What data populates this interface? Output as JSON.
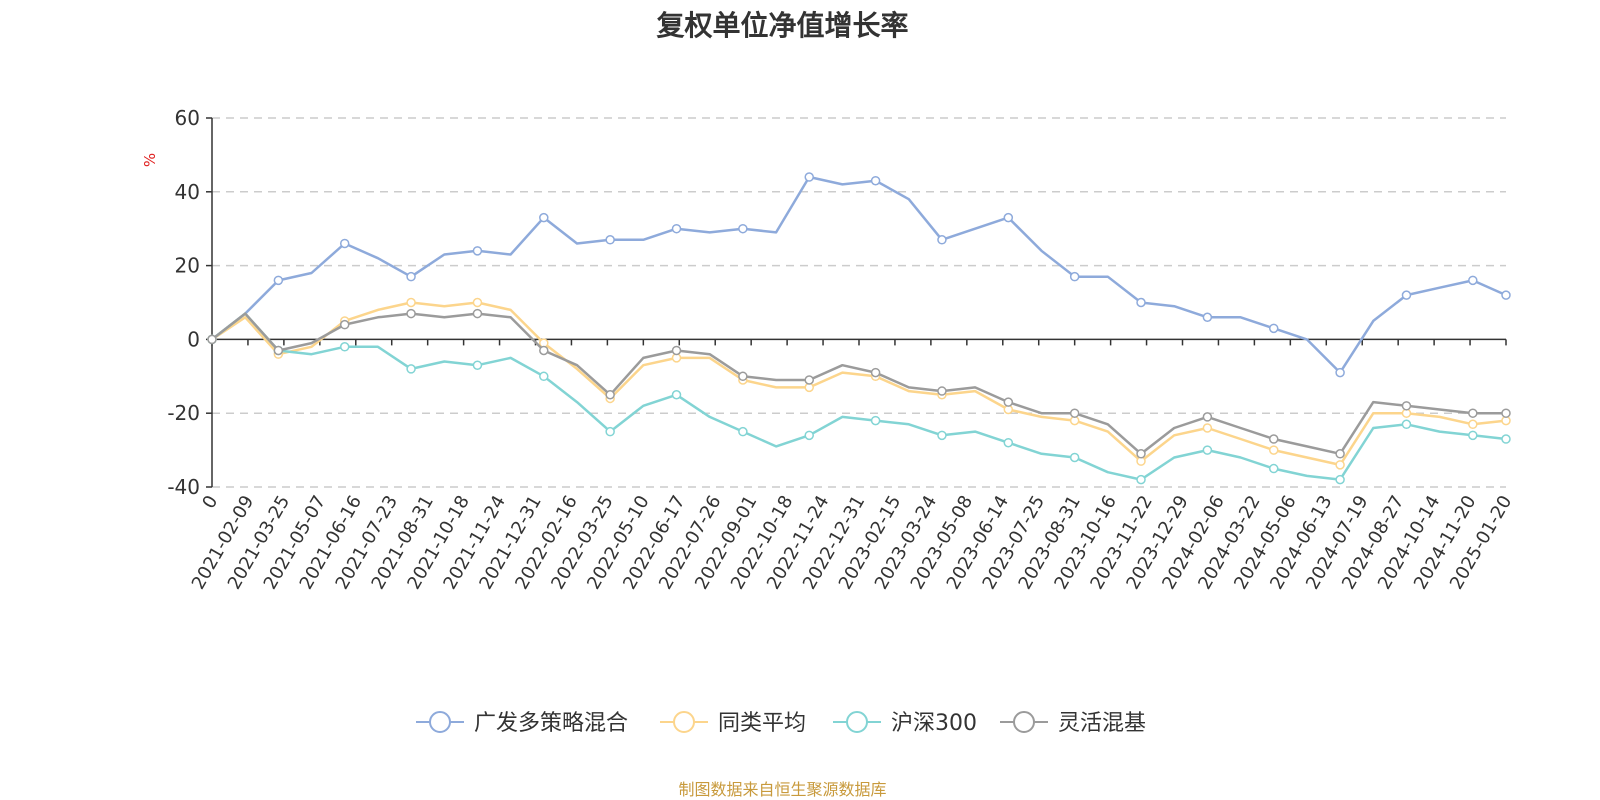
{
  "chart_data": {
    "type": "line",
    "title": "复权单位净值增长率",
    "ylabel": "%",
    "ylim": [
      -40,
      60
    ],
    "yticks": [
      60,
      40,
      20,
      0,
      -20,
      -40
    ],
    "xtick_labels": [
      "0",
      "2021-02-09",
      "2021-03-25",
      "2021-05-07",
      "2021-06-16",
      "2021-07-23",
      "2021-08-31",
      "2021-10-18",
      "2021-11-24",
      "2021-12-31",
      "2022-02-16",
      "2022-03-25",
      "2022-05-10",
      "2022-06-17",
      "2022-07-26",
      "2022-09-01",
      "2022-10-18",
      "2022-11-24",
      "2022-12-31",
      "2023-02-15",
      "2023-03-24",
      "2023-05-08",
      "2023-06-14",
      "2023-07-25",
      "2023-08-31",
      "2023-10-16",
      "2023-11-22",
      "2023-12-29",
      "2024-02-06",
      "2024-03-22",
      "2024-05-06",
      "2024-06-13",
      "2024-07-19",
      "2024-08-27",
      "2024-10-14",
      "2024-11-20",
      "2025-01-20"
    ],
    "grid": true,
    "legend_position": "bottom",
    "series": [
      {
        "name": "广发多策略混合",
        "color": "#8eaadb",
        "values": [
          0,
          7,
          16,
          18,
          26,
          22,
          17,
          23,
          24,
          23,
          33,
          26,
          27,
          27,
          30,
          29,
          30,
          29,
          44,
          42,
          43,
          38,
          27,
          30,
          33,
          24,
          17,
          17,
          10,
          9,
          6,
          6,
          3,
          0,
          -9,
          5,
          12,
          14,
          16,
          12
        ]
      },
      {
        "name": "同类平均",
        "color": "#fcd58c",
        "values": [
          0,
          6,
          -4,
          -2,
          5,
          8,
          10,
          9,
          10,
          8,
          -1,
          -8,
          -16,
          -7,
          -5,
          -5,
          -11,
          -13,
          -13,
          -9,
          -10,
          -14,
          -15,
          -14,
          -19,
          -21,
          -22,
          -25,
          -33,
          -26,
          -24,
          -27,
          -30,
          -32,
          -34,
          -20,
          -20,
          -21,
          -23,
          -22
        ]
      },
      {
        "name": "沪深300",
        "color": "#82d4d4",
        "values": [
          0,
          7,
          -3,
          -4,
          -2,
          -2,
          -8,
          -6,
          -7,
          -5,
          -10,
          -17,
          -25,
          -18,
          -15,
          -21,
          -25,
          -29,
          -26,
          -21,
          -22,
          -23,
          -26,
          -25,
          -28,
          -31,
          -32,
          -36,
          -38,
          -32,
          -30,
          -32,
          -35,
          -37,
          -38,
          -24,
          -23,
          -25,
          -26,
          -27
        ]
      },
      {
        "name": "灵活混基",
        "color": "#9b9b9b",
        "values": [
          0,
          7,
          -3,
          -1,
          4,
          6,
          7,
          6,
          7,
          6,
          -3,
          -7,
          -15,
          -5,
          -3,
          -4,
          -10,
          -11,
          -11,
          -7,
          -9,
          -13,
          -14,
          -13,
          -17,
          -20,
          -20,
          -23,
          -31,
          -24,
          -21,
          -24,
          -27,
          -29,
          -31,
          -17,
          -18,
          -19,
          -20,
          -20
        ]
      }
    ]
  },
  "footer": "制图数据来自恒生聚源数据库"
}
